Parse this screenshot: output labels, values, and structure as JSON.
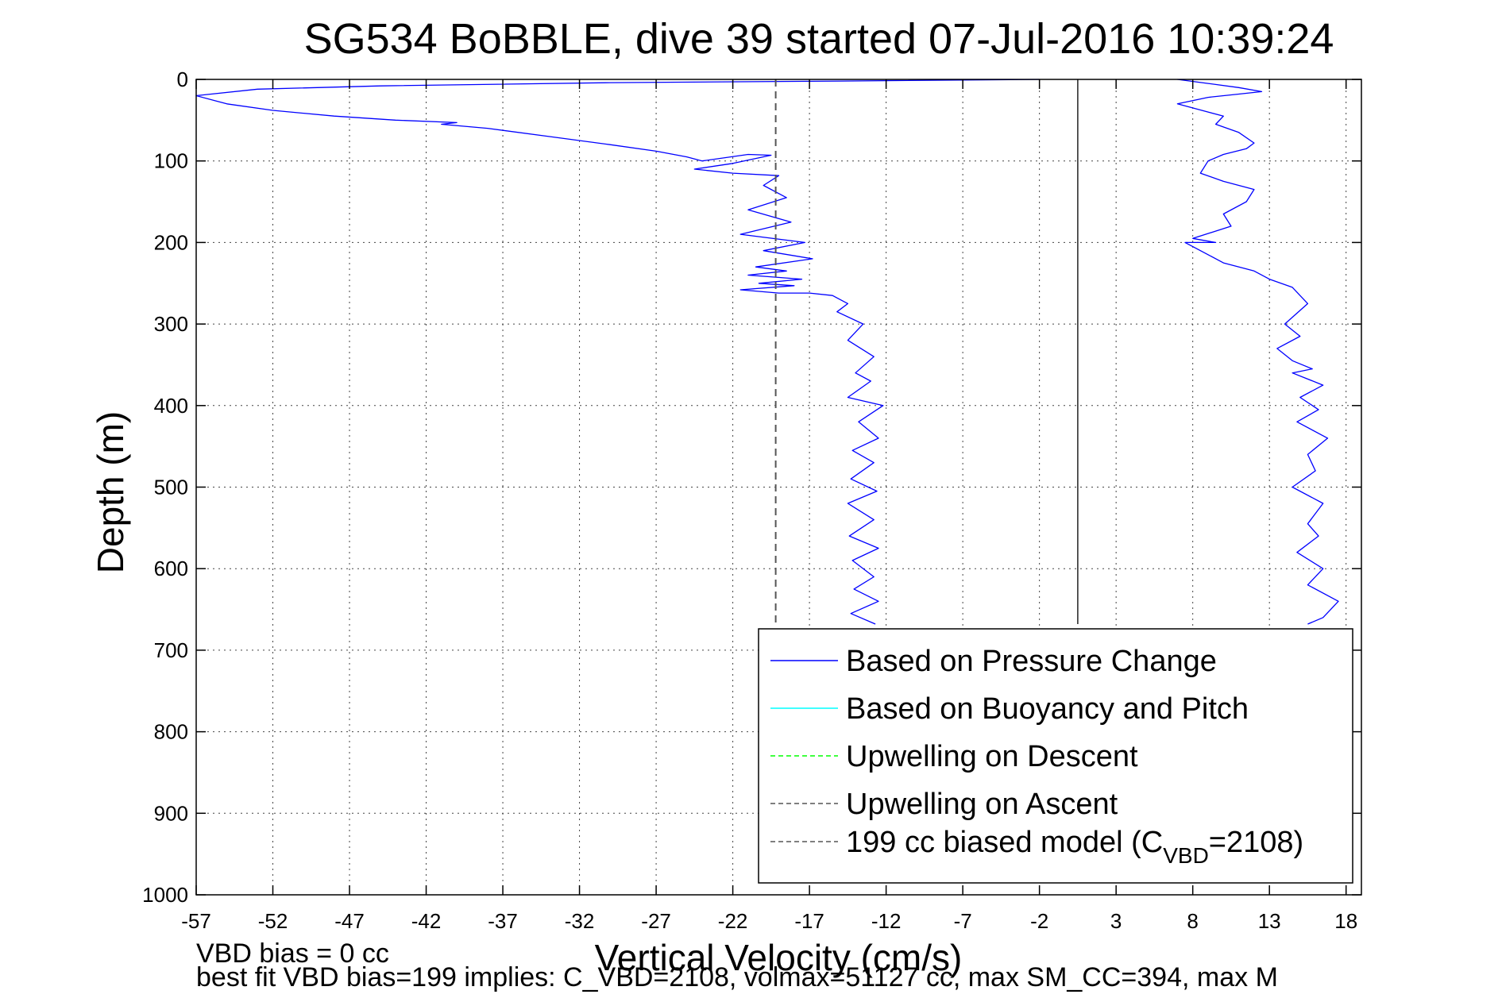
{
  "chart_data": {
    "type": "line",
    "title": "SG534 BoBBLE, dive 39 started 07-Jul-2016 10:39:24",
    "xlabel": "Vertical Velocity (cm/s)",
    "ylabel": "Depth (m)",
    "xlim": [
      -57,
      19
    ],
    "ylim": [
      0,
      1000
    ],
    "y_reversed": true,
    "grid": true,
    "legend_placement": "bottom-right",
    "xticks": [
      "-57",
      "-52",
      "-47",
      "-42",
      "-37",
      "-32",
      "-27",
      "-22",
      "-17",
      "-12",
      "-7",
      "-2",
      "3",
      "8",
      "13",
      "18"
    ],
    "yticks": [
      "0",
      "100",
      "200",
      "300",
      "400",
      "500",
      "600",
      "700",
      "800",
      "900",
      "1000"
    ],
    "legend": [
      {
        "label": "Based on Pressure Change",
        "color": "#0000ff",
        "style": "solid"
      },
      {
        "label": "Based on Buoyancy and Pitch",
        "color": "#00ffff",
        "style": "solid"
      },
      {
        "label": "Upwelling on Descent",
        "color": "#00ff00",
        "style": "dashed"
      },
      {
        "label": "Upwelling on Ascent",
        "color": "#555555",
        "style": "dashed"
      },
      {
        "label_main": "199 cc biased model (C",
        "label_sub": "VBD",
        "label_tail": "=2108)",
        "color": "#555555",
        "style": "dashed"
      }
    ],
    "series": [
      {
        "name": "Based on Pressure Change",
        "color": "#0000ff",
        "segments": [
          {
            "x": [
              -2,
              -15,
              -30,
              -45,
              -53,
              -57,
              -55,
              -52,
              -48,
              -44,
              -40,
              -41,
              -38,
              -34,
              -30,
              -27,
              -25,
              -24,
              -21,
              -19.5,
              -22,
              -24.5,
              -22,
              -19,
              -20,
              -18.5,
              -21,
              -18.2,
              -21.5,
              -17.3,
              -20,
              -16.8,
              -20.5,
              -18.5,
              -21,
              -17.5,
              -20.3,
              -18,
              -21.5,
              -19,
              -17,
              -15.5,
              -14.5,
              -15.2,
              -13.5,
              -14.5,
              -12.8,
              -14,
              -13,
              -14.5,
              -12.2,
              -13.8,
              -12.5,
              -14.2,
              -12.8,
              -14.3,
              -12.6,
              -14.5,
              -12.8,
              -14.4,
              -12.5,
              -14.2,
              -12.8,
              -14.1,
              -12.5,
              -14.3,
              -12.7
            ],
            "y": [
              0,
              2,
              4,
              8,
              12,
              20,
              30,
              38,
              45,
              50,
              53,
              55,
              60,
              70,
              80,
              88,
              95,
              100,
              92,
              93,
              103,
              110,
              115,
              118,
              130,
              145,
              160,
              175,
              190,
              200,
              210,
              220,
              230,
              235,
              240,
              245,
              250,
              253,
              258,
              262,
              262,
              265,
              275,
              285,
              300,
              320,
              340,
              360,
              370,
              390,
              400,
              420,
              440,
              455,
              470,
              490,
              505,
              520,
              540,
              560,
              575,
              590,
              610,
              625,
              640,
              655,
              668
            ]
          },
          {
            "x": [
              7,
              9,
              11,
              12.5,
              11,
              9,
              7,
              9,
              10,
              9.5,
              11,
              12,
              11.5,
              10,
              9,
              8.5,
              10,
              12,
              11.5,
              10,
              10.5,
              8,
              9.5,
              7.5,
              9,
              10,
              12,
              13,
              14.5,
              15.5,
              14,
              15,
              13.5,
              14.5,
              15.8,
              14.5,
              16.5,
              15,
              16.2,
              14.8,
              16.8,
              15.5,
              16,
              14.5,
              16.5,
              15.5,
              16.2,
              14.8,
              16.5,
              15.5,
              17.5,
              16.5,
              15.5
            ],
            "y": [
              0,
              5,
              10,
              15,
              18,
              22,
              30,
              40,
              45,
              55,
              65,
              78,
              85,
              92,
              100,
              115,
              125,
              135,
              150,
              165,
              180,
              195,
              200,
              200,
              215,
              225,
              235,
              245,
              255,
              275,
              300,
              315,
              330,
              345,
              355,
              360,
              375,
              390,
              405,
              420,
              440,
              460,
              480,
              500,
              520,
              545,
              560,
              580,
              600,
              620,
              640,
              660,
              668
            ]
          }
        ]
      },
      {
        "name": "Upwelling on Ascent",
        "color": "#555555",
        "style": "dashed",
        "x": [
          -19.2,
          -19.2
        ],
        "y": [
          0,
          668
        ]
      },
      {
        "name": "zero reference",
        "color": "#000000",
        "style": "solid",
        "x": [
          0.5,
          0.5
        ],
        "y": [
          0,
          668
        ]
      }
    ]
  },
  "footnotes": {
    "line1": "VBD bias = 0 cc",
    "line2": "best fit VBD bias=199 implies: C_VBD=2108, volmax=51127 cc, max SM_CC=394, max M"
  }
}
